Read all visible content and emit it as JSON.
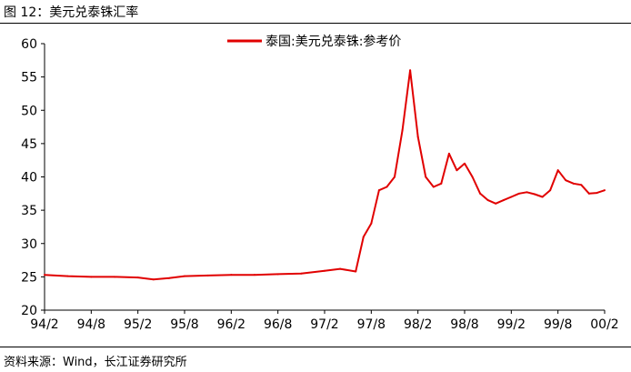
{
  "figure": {
    "title": "图 12：美元兑泰铢汇率",
    "source": "资料来源：Wind，长江证券研究所"
  },
  "chart_data": {
    "type": "line",
    "title": "",
    "xlabel": "",
    "ylabel": "",
    "ylim": [
      20,
      60
    ],
    "yticks": [
      20,
      25,
      30,
      35,
      40,
      45,
      50,
      55,
      60
    ],
    "xticks": [
      "94/2",
      "94/8",
      "95/2",
      "95/8",
      "96/2",
      "96/8",
      "97/2",
      "97/8",
      "98/2",
      "98/8",
      "99/2",
      "99/8",
      "00/2"
    ],
    "grid": false,
    "legend_position": "top-center",
    "series": [
      {
        "name": "泰国:美元兑泰铢:参考价",
        "color": "#e10000",
        "points": [
          [
            "94/2",
            25.3
          ],
          [
            "94/5",
            25.1
          ],
          [
            "94/8",
            25.0
          ],
          [
            "94/11",
            25.0
          ],
          [
            "95/2",
            24.9
          ],
          [
            "95/4",
            24.6
          ],
          [
            "95/6",
            24.8
          ],
          [
            "95/8",
            25.1
          ],
          [
            "95/11",
            25.2
          ],
          [
            "96/2",
            25.3
          ],
          [
            "96/5",
            25.3
          ],
          [
            "96/8",
            25.4
          ],
          [
            "96/11",
            25.5
          ],
          [
            "97/2",
            25.9
          ],
          [
            "97/4",
            26.2
          ],
          [
            "97/6",
            25.8
          ],
          [
            "97/7",
            31.0
          ],
          [
            "97/8",
            33.0
          ],
          [
            "97/9",
            38.0
          ],
          [
            "97/10",
            38.5
          ],
          [
            "97/11",
            40.0
          ],
          [
            "97/12",
            47.0
          ],
          [
            "98/1",
            56.0
          ],
          [
            "98/2",
            46.0
          ],
          [
            "98/3",
            40.0
          ],
          [
            "98/4",
            38.5
          ],
          [
            "98/5",
            39.0
          ],
          [
            "98/6",
            43.5
          ],
          [
            "98/7",
            41.0
          ],
          [
            "98/8",
            42.0
          ],
          [
            "98/9",
            40.0
          ],
          [
            "98/10",
            37.5
          ],
          [
            "98/11",
            36.5
          ],
          [
            "98/12",
            36.0
          ],
          [
            "99/1",
            36.5
          ],
          [
            "99/2",
            37.0
          ],
          [
            "99/3",
            37.5
          ],
          [
            "99/4",
            37.7
          ],
          [
            "99/5",
            37.4
          ],
          [
            "99/6",
            37.0
          ],
          [
            "99/7",
            38.0
          ],
          [
            "99/8",
            41.0
          ],
          [
            "99/9",
            39.5
          ],
          [
            "99/10",
            39.0
          ],
          [
            "99/11",
            38.8
          ],
          [
            "99/12",
            37.5
          ],
          [
            "00/1",
            37.6
          ],
          [
            "00/2",
            38.0
          ]
        ]
      }
    ]
  }
}
